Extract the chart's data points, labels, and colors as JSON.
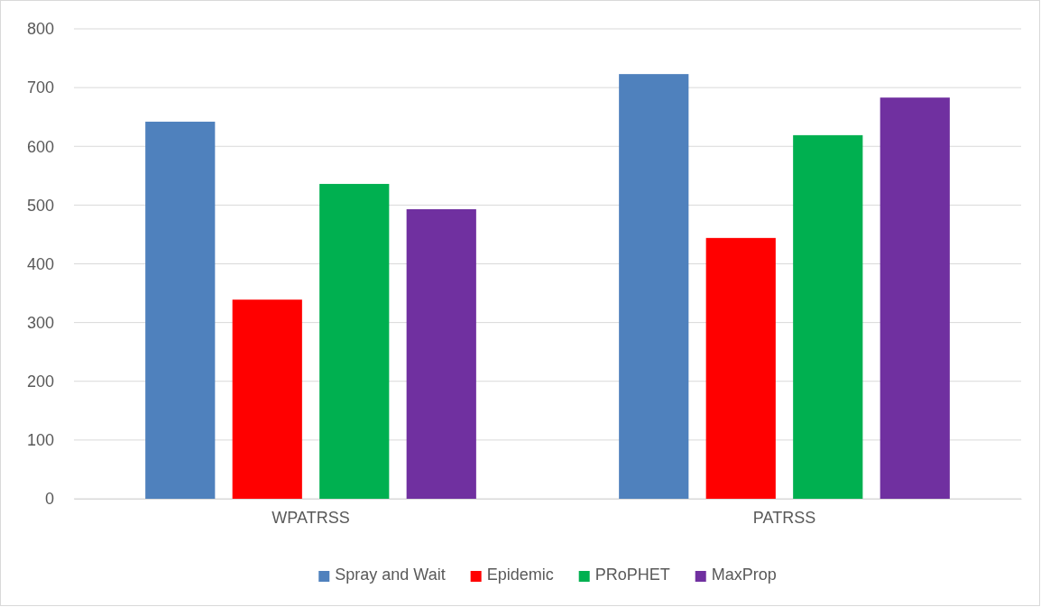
{
  "chart_data": {
    "type": "bar",
    "categories": [
      "WPATRSS",
      "PATRSS"
    ],
    "series": [
      {
        "name": "Spray and Wait",
        "color": "#4f81bd",
        "values": [
          642,
          723
        ]
      },
      {
        "name": "Epidemic",
        "color": "#ff0000",
        "values": [
          339,
          444
        ]
      },
      {
        "name": "PRoPHET",
        "color": "#00b050",
        "values": [
          536,
          619
        ]
      },
      {
        "name": "MaxProp",
        "color": "#7030a0",
        "values": [
          493,
          683
        ]
      }
    ],
    "ylim": [
      0,
      800
    ],
    "yticks": [
      0,
      100,
      200,
      300,
      400,
      500,
      600,
      700,
      800
    ],
    "grid": "y",
    "legend": "bottom"
  }
}
